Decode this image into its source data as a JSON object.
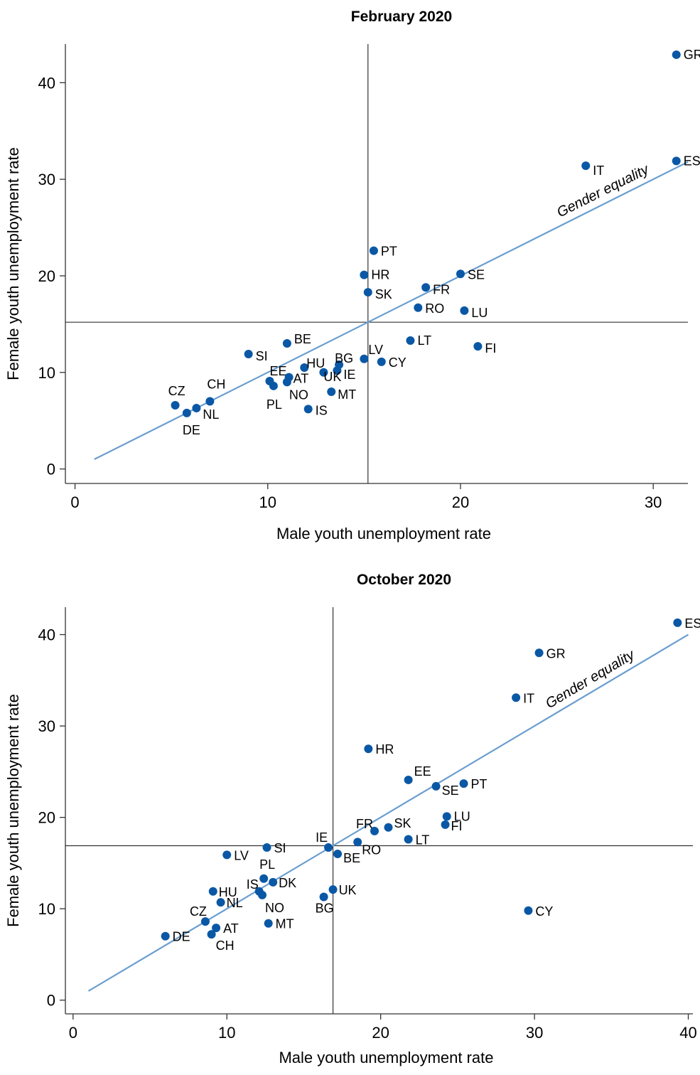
{
  "colors": {
    "point": "#0a58a5",
    "equality_line": "#6a9ed0",
    "axes": "#333333",
    "reference_lines": "#333333"
  },
  "chart_data": [
    {
      "type": "scatter",
      "title": "February 2020",
      "xlabel": "Male youth unemployment rate",
      "ylabel": "Female youth unemployment rate",
      "xlim": [
        -0.5,
        31.8
      ],
      "ylim": [
        -1.5,
        44
      ],
      "xticks": [
        0,
        10,
        20,
        30
      ],
      "yticks": [
        0,
        10,
        20,
        30,
        40
      ],
      "vline_x": 15.2,
      "hline_y": 15.2,
      "equality_line": {
        "label": "Gender equality",
        "from": [
          1,
          1
        ],
        "to": [
          31.8,
          31.8
        ]
      },
      "points": [
        {
          "label": "GR",
          "x": 31.2,
          "y": 42.9
        },
        {
          "label": "ES",
          "x": 31.2,
          "y": 31.9
        },
        {
          "label": "IT",
          "x": 26.5,
          "y": 31.4
        },
        {
          "label": "PT",
          "x": 15.5,
          "y": 22.6
        },
        {
          "label": "HR",
          "x": 15.0,
          "y": 20.1
        },
        {
          "label": "SE",
          "x": 20.0,
          "y": 20.2
        },
        {
          "label": "FR",
          "x": 18.2,
          "y": 18.8
        },
        {
          "label": "SK",
          "x": 15.2,
          "y": 18.3
        },
        {
          "label": "RO",
          "x": 17.8,
          "y": 16.7
        },
        {
          "label": "LU",
          "x": 20.2,
          "y": 16.4
        },
        {
          "label": "LT",
          "x": 17.4,
          "y": 13.3
        },
        {
          "label": "FI",
          "x": 20.9,
          "y": 12.7
        },
        {
          "label": "BE",
          "x": 11.0,
          "y": 13.0
        },
        {
          "label": "SI",
          "x": 9.0,
          "y": 11.9
        },
        {
          "label": "LV",
          "x": 15.0,
          "y": 11.4
        },
        {
          "label": "BG",
          "x": 13.7,
          "y": 10.8
        },
        {
          "label": "CY",
          "x": 15.9,
          "y": 11.1
        },
        {
          "label": "HU",
          "x": 11.9,
          "y": 10.5
        },
        {
          "label": "IE",
          "x": 13.6,
          "y": 10.2
        },
        {
          "label": "UK",
          "x": 12.9,
          "y": 10.0
        },
        {
          "label": "EE",
          "x": 10.1,
          "y": 9.1
        },
        {
          "label": "AT",
          "x": 11.1,
          "y": 9.5
        },
        {
          "label": "NO",
          "x": 11.0,
          "y": 9.0
        },
        {
          "label": "PL",
          "x": 10.3,
          "y": 8.6
        },
        {
          "label": "MT",
          "x": 13.3,
          "y": 8.0
        },
        {
          "label": "IS",
          "x": 12.1,
          "y": 6.2
        },
        {
          "label": "CZ",
          "x": 5.2,
          "y": 6.6
        },
        {
          "label": "CH",
          "x": 7.0,
          "y": 7.0
        },
        {
          "label": "NL",
          "x": 6.3,
          "y": 6.3
        },
        {
          "label": "DE",
          "x": 5.8,
          "y": 5.8
        }
      ]
    },
    {
      "type": "scatter",
      "title": "October 2020",
      "xlabel": "Male youth unemployment rate",
      "ylabel": "Female youth unemployment rate",
      "xlim": [
        -0.5,
        40.3
      ],
      "ylim": [
        -1.5,
        43
      ],
      "xticks": [
        0,
        10,
        20,
        30,
        40
      ],
      "yticks": [
        0,
        10,
        20,
        30,
        40
      ],
      "vline_x": 16.9,
      "hline_y": 16.9,
      "equality_line": {
        "label": "Gender equality",
        "from": [
          1,
          1
        ],
        "to": [
          40,
          40
        ]
      },
      "points": [
        {
          "label": "ES",
          "x": 39.3,
          "y": 41.3
        },
        {
          "label": "GR",
          "x": 30.3,
          "y": 38.0
        },
        {
          "label": "IT",
          "x": 28.8,
          "y": 33.1
        },
        {
          "label": "HR",
          "x": 19.2,
          "y": 27.5
        },
        {
          "label": "EE",
          "x": 21.8,
          "y": 24.1
        },
        {
          "label": "SE",
          "x": 23.6,
          "y": 23.4
        },
        {
          "label": "PT",
          "x": 25.4,
          "y": 23.7
        },
        {
          "label": "LU",
          "x": 24.3,
          "y": 20.1
        },
        {
          "label": "FI",
          "x": 24.2,
          "y": 19.2
        },
        {
          "label": "SK",
          "x": 20.5,
          "y": 18.9
        },
        {
          "label": "FR",
          "x": 19.6,
          "y": 18.5
        },
        {
          "label": "LT",
          "x": 21.8,
          "y": 17.6
        },
        {
          "label": "RO",
          "x": 18.5,
          "y": 17.3
        },
        {
          "label": "IE",
          "x": 16.6,
          "y": 16.7
        },
        {
          "label": "BE",
          "x": 17.2,
          "y": 16.0
        },
        {
          "label": "SI",
          "x": 12.6,
          "y": 16.7
        },
        {
          "label": "LV",
          "x": 10.0,
          "y": 15.9
        },
        {
          "label": "PL",
          "x": 12.4,
          "y": 13.3
        },
        {
          "label": "DK",
          "x": 13.0,
          "y": 12.9
        },
        {
          "label": "IS",
          "x": 12.1,
          "y": 11.9
        },
        {
          "label": "NO",
          "x": 12.3,
          "y": 11.5
        },
        {
          "label": "UK",
          "x": 16.9,
          "y": 12.1
        },
        {
          "label": "BG",
          "x": 16.3,
          "y": 11.3
        },
        {
          "label": "HU",
          "x": 9.1,
          "y": 11.9
        },
        {
          "label": "NL",
          "x": 9.6,
          "y": 10.7
        },
        {
          "label": "CY",
          "x": 29.6,
          "y": 9.8
        },
        {
          "label": "CZ",
          "x": 8.6,
          "y": 8.6
        },
        {
          "label": "MT",
          "x": 12.7,
          "y": 8.4
        },
        {
          "label": "AT",
          "x": 9.3,
          "y": 7.9
        },
        {
          "label": "CH",
          "x": 9.0,
          "y": 7.2
        },
        {
          "label": "DE",
          "x": 6.0,
          "y": 7.0
        }
      ]
    }
  ]
}
